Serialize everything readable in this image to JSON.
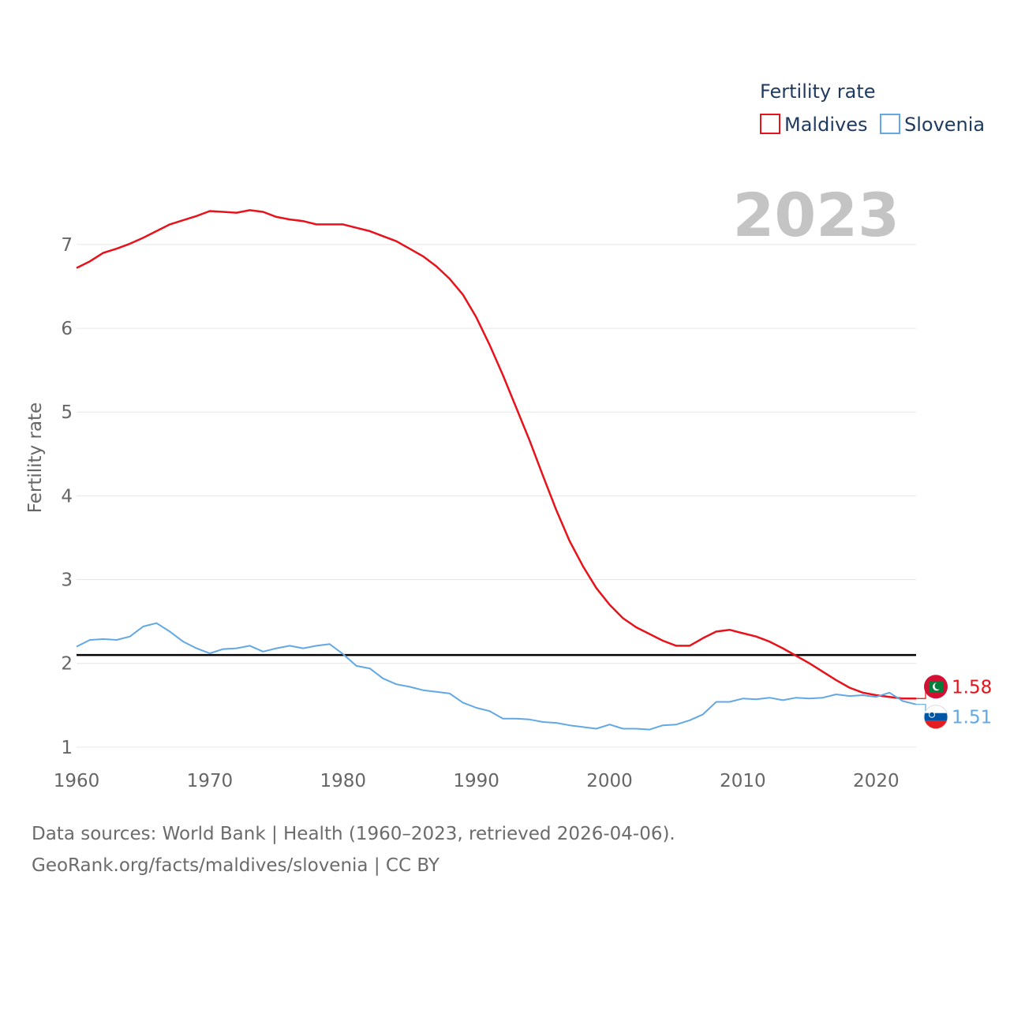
{
  "chart_data": {
    "type": "line",
    "year_label": "2023",
    "ylabel": "Fertility rate",
    "xlabel": "",
    "xlim": [
      1960,
      2023
    ],
    "ylim": [
      0.65,
      7.8
    ],
    "x_ticks": [
      1960,
      1970,
      1980,
      1990,
      2000,
      2010,
      2020
    ],
    "y_ticks": [
      1,
      2,
      3,
      4,
      5,
      6,
      7
    ],
    "grid": true,
    "legend": {
      "title": "Fertility rate",
      "position": "top-right",
      "entries": [
        "Maldives",
        "Slovenia"
      ]
    },
    "reference_line": {
      "y": 2.1,
      "color": "#000000"
    },
    "series": [
      {
        "name": "Maldives",
        "color": "#e8121b",
        "end_label": "1.58",
        "flag_icon": "maldives-flag-icon",
        "x": [
          1960,
          1961,
          1962,
          1963,
          1964,
          1965,
          1966,
          1967,
          1968,
          1969,
          1970,
          1971,
          1972,
          1973,
          1974,
          1975,
          1976,
          1977,
          1978,
          1979,
          1980,
          1981,
          1982,
          1983,
          1984,
          1985,
          1986,
          1987,
          1988,
          1989,
          1990,
          1991,
          1992,
          1993,
          1994,
          1995,
          1996,
          1997,
          1998,
          1999,
          2000,
          2001,
          2002,
          2003,
          2004,
          2005,
          2006,
          2007,
          2008,
          2009,
          2010,
          2011,
          2012,
          2013,
          2014,
          2015,
          2016,
          2017,
          2018,
          2019,
          2020,
          2021,
          2022,
          2023
        ],
        "values": [
          6.72,
          6.8,
          6.9,
          6.95,
          7.01,
          7.08,
          7.16,
          7.24,
          7.29,
          7.34,
          7.4,
          7.39,
          7.38,
          7.41,
          7.39,
          7.33,
          7.3,
          7.28,
          7.24,
          7.24,
          7.24,
          7.2,
          7.16,
          7.1,
          7.04,
          6.95,
          6.86,
          6.74,
          6.59,
          6.4,
          6.13,
          5.8,
          5.44,
          5.05,
          4.66,
          4.24,
          3.83,
          3.46,
          3.16,
          2.9,
          2.7,
          2.54,
          2.43,
          2.35,
          2.27,
          2.21,
          2.21,
          2.3,
          2.38,
          2.4,
          2.36,
          2.32,
          2.26,
          2.18,
          2.09,
          2.0,
          1.9,
          1.8,
          1.71,
          1.65,
          1.62,
          1.6,
          1.58,
          1.58
        ]
      },
      {
        "name": "Slovenia",
        "color": "#62a8e5",
        "end_label": "1.51",
        "flag_icon": "slovenia-flag-icon",
        "x": [
          1960,
          1961,
          1962,
          1963,
          1964,
          1965,
          1966,
          1967,
          1968,
          1969,
          1970,
          1971,
          1972,
          1973,
          1974,
          1975,
          1976,
          1977,
          1978,
          1979,
          1980,
          1981,
          1982,
          1983,
          1984,
          1985,
          1986,
          1987,
          1988,
          1989,
          1990,
          1991,
          1992,
          1993,
          1994,
          1995,
          1996,
          1997,
          1998,
          1999,
          2000,
          2001,
          2002,
          2003,
          2004,
          2005,
          2006,
          2007,
          2008,
          2009,
          2010,
          2011,
          2012,
          2013,
          2014,
          2015,
          2016,
          2017,
          2018,
          2019,
          2020,
          2021,
          2022,
          2023
        ],
        "values": [
          2.2,
          2.28,
          2.29,
          2.28,
          2.32,
          2.44,
          2.48,
          2.38,
          2.26,
          2.18,
          2.12,
          2.17,
          2.18,
          2.21,
          2.14,
          2.18,
          2.21,
          2.18,
          2.21,
          2.23,
          2.11,
          1.97,
          1.94,
          1.82,
          1.75,
          1.72,
          1.68,
          1.66,
          1.64,
          1.53,
          1.47,
          1.43,
          1.34,
          1.34,
          1.33,
          1.3,
          1.29,
          1.26,
          1.24,
          1.22,
          1.27,
          1.22,
          1.22,
          1.21,
          1.26,
          1.27,
          1.32,
          1.39,
          1.54,
          1.54,
          1.58,
          1.57,
          1.59,
          1.56,
          1.59,
          1.58,
          1.59,
          1.63,
          1.61,
          1.62,
          1.6,
          1.65,
          1.55,
          1.51
        ]
      }
    ]
  },
  "footer": {
    "source_line": "Data sources: World Bank | Health (1960–2023, retrieved 2026-04-06).",
    "license_line": "GeoRank.org/facts/maldives/slovenia | CC BY"
  }
}
